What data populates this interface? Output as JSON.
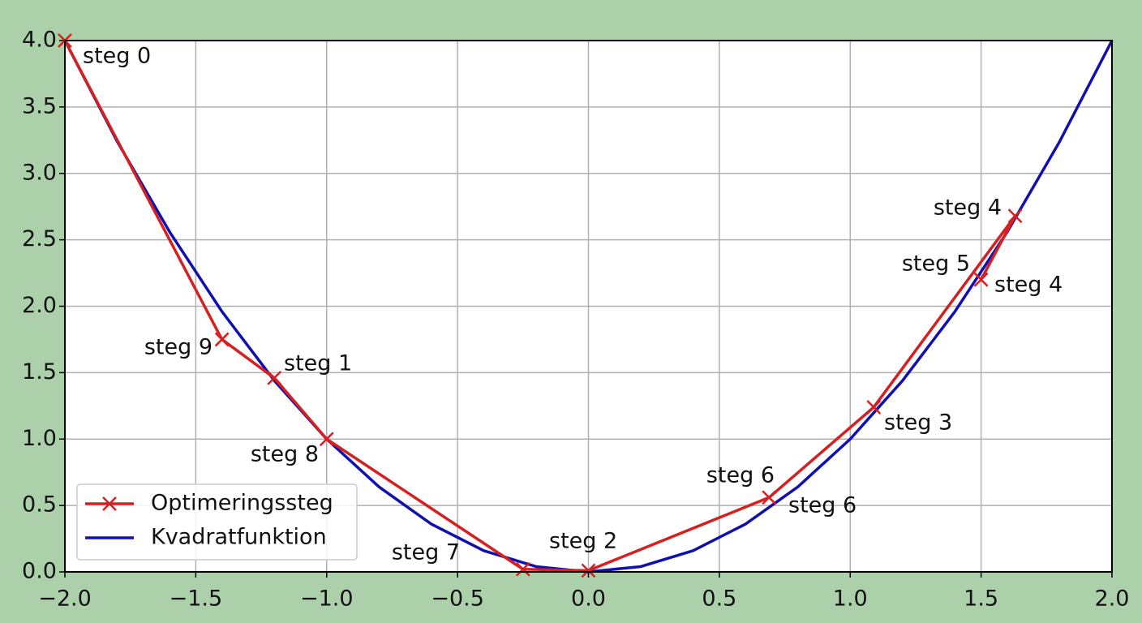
{
  "chart_data": {
    "type": "line",
    "series": [
      {
        "name": "Optimeringssteg",
        "color": "#d42020",
        "marker": "x",
        "x": [
          -2.0,
          -1.4,
          -1.2,
          -1.0,
          -0.25,
          0.0,
          0.69,
          1.09,
          1.63,
          1.5
        ],
        "values": [
          4.0,
          1.75,
          1.46,
          1.0,
          0.02,
          0.01,
          0.56,
          1.24,
          2.68,
          2.2
        ]
      },
      {
        "name": "Kvadratfunktion",
        "color": "#1010b0",
        "x": [
          -2.0,
          -1.8,
          -1.6,
          -1.4,
          -1.2,
          -1.0,
          -0.8,
          -0.6,
          -0.4,
          -0.2,
          0.0,
          0.2,
          0.4,
          0.6,
          0.8,
          1.0,
          1.2,
          1.4,
          1.6,
          1.8,
          2.0
        ],
        "values": [
          4.0,
          3.24,
          2.56,
          1.96,
          1.44,
          1.0,
          0.64,
          0.36,
          0.16,
          0.04,
          0.0,
          0.04,
          0.16,
          0.36,
          0.64,
          1.0,
          1.44,
          1.96,
          2.56,
          3.24,
          4.0
        ]
      }
    ],
    "annotations": [
      "steg 0",
      "steg 9",
      "steg 1",
      "steg 8",
      "steg 7",
      "steg 2",
      "steg 6",
      "steg 6",
      "steg 3",
      "steg 5",
      "steg 4",
      "steg 4"
    ],
    "xlim": [
      -2.0,
      2.0
    ],
    "xticks": [
      {
        "value": -2.0,
        "label": "−2.0"
      },
      {
        "value": -1.5,
        "label": "−1.5"
      },
      {
        "value": -1.0,
        "label": "−1.0"
      },
      {
        "value": -0.5,
        "label": "−0.5"
      },
      {
        "value": 0.0,
        "label": "0.0"
      },
      {
        "value": 0.5,
        "label": "0.5"
      },
      {
        "value": 1.0,
        "label": "1.0"
      },
      {
        "value": 1.5,
        "label": "1.5"
      },
      {
        "value": 2.0,
        "label": "2.0"
      }
    ],
    "ylim": [
      0.0,
      4.0
    ],
    "yticks": [
      {
        "value": 0.0,
        "label": "0.0"
      },
      {
        "value": 0.5,
        "label": "0.5"
      },
      {
        "value": 1.0,
        "label": "1.0"
      },
      {
        "value": 1.5,
        "label": "1.5"
      },
      {
        "value": 2.0,
        "label": "2.0"
      },
      {
        "value": 2.5,
        "label": "2.5"
      },
      {
        "value": 3.0,
        "label": "3.0"
      },
      {
        "value": 3.5,
        "label": "3.5"
      },
      {
        "value": 4.0,
        "label": "4.0"
      }
    ],
    "grid": true,
    "legend": "lower left"
  }
}
